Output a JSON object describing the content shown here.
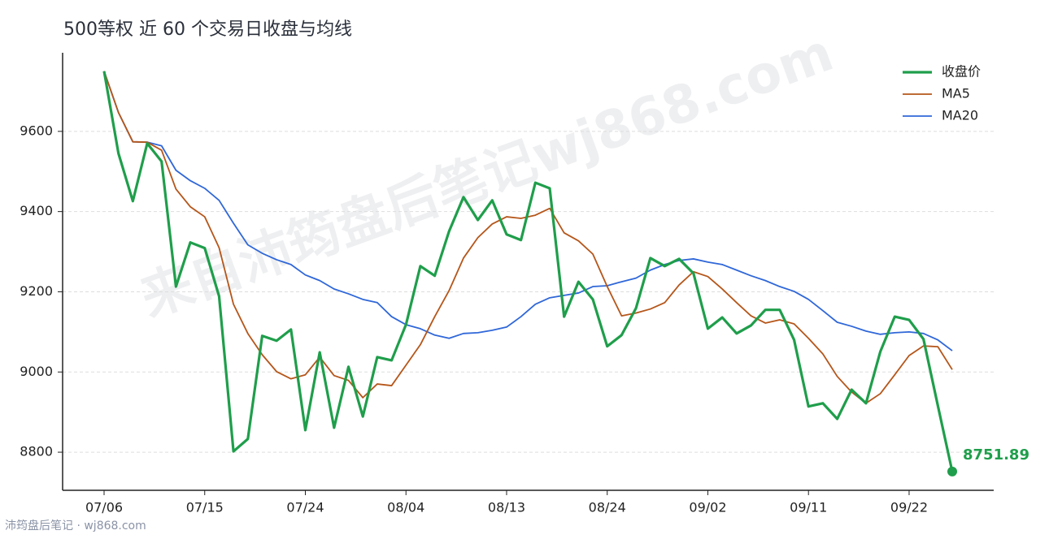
{
  "chart_data": {
    "type": "line",
    "title": "500等权 近 60 个交易日收盘与均线",
    "watermark": "来自沛筠盘后笔记wj868.com",
    "footer": "沛筠盘后笔记 · wj868.com",
    "categories": [
      "07/06",
      null,
      null,
      null,
      null,
      null,
      null,
      "07/15",
      null,
      null,
      null,
      null,
      null,
      null,
      "07/24",
      null,
      null,
      null,
      null,
      null,
      null,
      "08/04",
      null,
      null,
      null,
      null,
      null,
      null,
      "08/13",
      null,
      null,
      null,
      null,
      null,
      null,
      "08/24",
      null,
      null,
      null,
      null,
      null,
      null,
      "09/02",
      null,
      null,
      null,
      null,
      null,
      null,
      "09/11",
      null,
      null,
      null,
      null,
      null,
      null,
      "09/22",
      null,
      null,
      null
    ],
    "series": [
      {
        "name": "收盘价",
        "color": "#1f9e4b",
        "width": 3.2,
        "values": [
          9750,
          9545,
          9426,
          9570,
          9525,
          9213,
          9323,
          9309,
          9189,
          8802,
          8833,
          9090,
          9078,
          9106,
          8855,
          9049,
          8861,
          9013,
          8889,
          9037,
          9029,
          9118,
          9264,
          9240,
          9351,
          9436,
          9379,
          9428,
          9343,
          9329,
          9472,
          9458,
          9138,
          9225,
          9181,
          9064,
          9092,
          9159,
          9284,
          9264,
          9282,
          9246,
          9108,
          9136,
          9096,
          9116,
          9155,
          9155,
          9080,
          8914,
          8922,
          8883,
          8956,
          8922,
          9051,
          9138,
          9130,
          9082,
          8916,
          8751.89
        ]
      },
      {
        "name": "MA5",
        "color": "#b5561a",
        "width": 1.8,
        "values": [
          9750,
          9647,
          9574,
          9573,
          9553,
          9456,
          9412,
          9387,
          9310,
          9169,
          9096,
          9043,
          9001,
          8983,
          8993,
          9037,
          8991,
          8979,
          8936,
          8970,
          8966,
          9017,
          9068,
          9138,
          9203,
          9284,
          9335,
          9369,
          9387,
          9383,
          9391,
          9408,
          9347,
          9327,
          9294,
          9213,
          9140,
          9147,
          9157,
          9173,
          9217,
          9250,
          9238,
          9207,
          9173,
          9140,
          9122,
          9130,
          9120,
          9084,
          9045,
          8989,
          8950,
          8922,
          8946,
          8993,
          9041,
          9065,
          9063,
          9006
        ]
      },
      {
        "name": "MA20",
        "color": "#2f67d8",
        "width": 1.8,
        "values": [
          9750,
          9647,
          9574,
          9573,
          9564,
          9503,
          9477,
          9458,
          9428,
          9371,
          9317,
          9296,
          9280,
          9268,
          9242,
          9228,
          9207,
          9195,
          9181,
          9173,
          9138,
          9118,
          9108,
          9092,
          9084,
          9096,
          9098,
          9104,
          9112,
          9138,
          9169,
          9185,
          9191,
          9197,
          9213,
          9215,
          9225,
          9234,
          9254,
          9268,
          9278,
          9282,
          9274,
          9268,
          9254,
          9240,
          9228,
          9213,
          9201,
          9181,
          9153,
          9124,
          9114,
          9102,
          9094,
          9098,
          9100,
          9096,
          9080,
          9053
        ]
      }
    ],
    "ylim": [
      8705,
      9796
    ],
    "yticks": [
      8800,
      9000,
      9200,
      9400,
      9600
    ],
    "grid": true,
    "legend": "upper right"
  }
}
